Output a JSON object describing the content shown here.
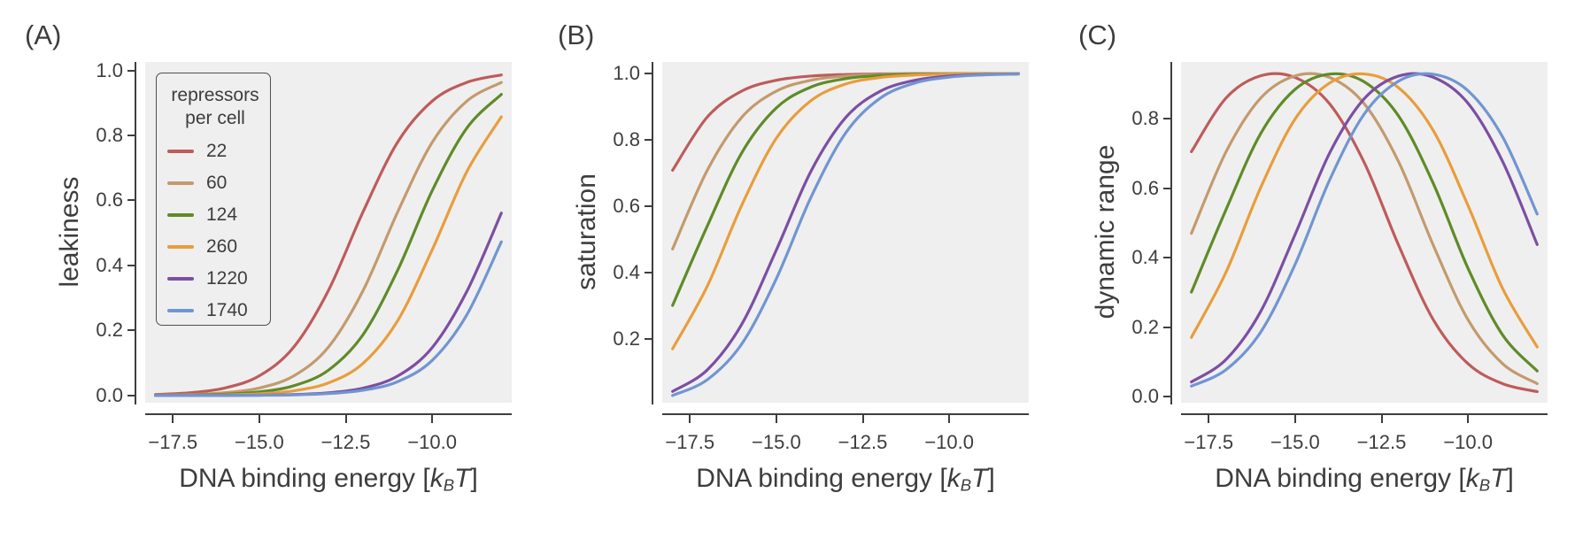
{
  "figure": {
    "background": "#ffffff",
    "plot_background": "#efefef",
    "text_color": "#3d3d3d",
    "axis_color": "#3e3e3e",
    "palette": {
      "22": "#bf5b5b",
      "60": "#c39a6e",
      "124": "#5f8b28",
      "260": "#e89d3c",
      "1220": "#7b4fa3",
      "1740": "#7195d2"
    },
    "xlabel": {
      "prefix": "DNA binding energy [",
      "k": "k",
      "sub": "B",
      "T": "T",
      "suffix": "]"
    },
    "legend": {
      "title_lines": [
        "repressors",
        "per cell"
      ],
      "entries": [
        {
          "label": "22"
        },
        {
          "label": "60"
        },
        {
          "label": "124"
        },
        {
          "label": "260"
        },
        {
          "label": "1220"
        },
        {
          "label": "1740"
        }
      ]
    }
  },
  "chart_data": [
    {
      "type": "line",
      "panel": "(A)",
      "title": "leakiness vs DNA binding energy",
      "ylabel": "leakiness",
      "xlabel": "DNA binding energy [kBT]",
      "legend_visible": true,
      "xlim": [
        -18.3,
        -7.7
      ],
      "ylim": [
        -0.022,
        1.026
      ],
      "grid": false,
      "xticks": {
        "values": [
          -17.5,
          -15.0,
          -12.5,
          -10.0
        ],
        "labels": [
          "−17.5",
          "−15.0",
          "−12.5",
          "−10.0"
        ]
      },
      "yticks": {
        "values": [
          0.0,
          0.2,
          0.4,
          0.6,
          0.8,
          1.0
        ],
        "labels": [
          "0.0",
          "0.2",
          "0.4",
          "0.6",
          "0.8",
          "1.0"
        ]
      },
      "x": [
        -18,
        -17,
        -16,
        -15,
        -14,
        -13,
        -12,
        -11,
        -10,
        -9,
        -8
      ],
      "series": [
        {
          "name": "22",
          "values": [
            0.0032,
            0.0087,
            0.0232,
            0.0607,
            0.1495,
            0.3234,
            0.565,
            0.7793,
            0.9056,
            0.9631,
            0.9861
          ]
        },
        {
          "name": "60",
          "values": [
            0.0012,
            0.0032,
            0.0087,
            0.0232,
            0.0606,
            0.1492,
            0.3226,
            0.5642,
            0.7787,
            0.9054,
            0.963
          ]
        },
        {
          "name": "124",
          "values": [
            0.0006,
            0.0016,
            0.0042,
            0.0113,
            0.0302,
            0.0781,
            0.1873,
            0.3851,
            0.63,
            0.8224,
            0.9264
          ]
        },
        {
          "name": "260",
          "values": [
            0.0003,
            0.0007,
            0.002,
            0.0054,
            0.0147,
            0.0389,
            0.099,
            0.23,
            0.4482,
            0.6883,
            0.8572
          ]
        },
        {
          "name": "1220",
          "values": [
            0.0001,
            0.0002,
            0.0004,
            0.0012,
            0.0032,
            0.0085,
            0.0229,
            0.0599,
            0.1475,
            0.32,
            0.5612
          ]
        },
        {
          "name": "1740",
          "values": [
            0.0,
            0.0001,
            0.0003,
            0.0008,
            0.0022,
            0.006,
            0.0162,
            0.0427,
            0.1082,
            0.2481,
            0.4728
          ]
        }
      ]
    },
    {
      "type": "line",
      "panel": "(B)",
      "title": "saturation vs DNA binding energy",
      "ylabel": "saturation",
      "xlabel": "DNA binding energy [kBT]",
      "legend_visible": false,
      "xlim": [
        -18.3,
        -7.7
      ],
      "ylim": [
        0.008,
        1.035
      ],
      "grid": false,
      "xticks": {
        "values": [
          -17.5,
          -15.0,
          -12.5,
          -10.0
        ],
        "labels": [
          "−17.5",
          "−15.0",
          "−12.5",
          "−10.0"
        ]
      },
      "yticks": {
        "values": [
          0.2,
          0.4,
          0.6,
          0.8,
          1.0
        ],
        "labels": [
          "0.2",
          "0.4",
          "0.6",
          "0.8",
          "1.0"
        ]
      },
      "x": [
        -18,
        -17,
        -16,
        -15,
        -14,
        -13,
        -12,
        -11,
        -10,
        -9,
        -8
      ],
      "series": [
        {
          "name": "22",
          "values": [
            0.7086,
            0.8686,
            0.9473,
            0.9799,
            0.9925,
            0.9972,
            0.999,
            0.9996,
            0.9999,
            0.9999,
            1.0
          ]
        },
        {
          "name": "60",
          "values": [
            0.4713,
            0.7078,
            0.8682,
            0.9471,
            0.9799,
            0.9925,
            0.9972,
            0.999,
            0.9996,
            0.9999,
            0.9999
          ]
        },
        {
          "name": "124",
          "values": [
            0.3013,
            0.5397,
            0.7612,
            0.8965,
            0.9593,
            0.9846,
            0.9943,
            0.9979,
            0.9992,
            0.9997,
            0.9999
          ]
        },
        {
          "name": "260",
          "values": [
            0.1706,
            0.3586,
            0.6032,
            0.8051,
            0.9182,
            0.9683,
            0.9881,
            0.9956,
            0.9984,
            0.9994,
            0.9998
          ]
        },
        {
          "name": "1220",
          "values": [
            0.042,
            0.1065,
            0.2446,
            0.4682,
            0.7053,
            0.8667,
            0.9465,
            0.9796,
            0.9924,
            0.9972,
            0.999
          ]
        },
        {
          "name": "1740",
          "values": [
            0.0298,
            0.0771,
            0.1851,
            0.3817,
            0.6266,
            0.8202,
            0.9254,
            0.9712,
            0.9892,
            0.996,
            0.9985
          ]
        }
      ]
    },
    {
      "type": "line",
      "panel": "(C)",
      "title": "dynamic range vs DNA binding energy",
      "ylabel": "dynamic range",
      "xlabel": "DNA binding energy [kBT]",
      "legend_visible": false,
      "xlim": [
        -18.3,
        -7.7
      ],
      "ylim": [
        -0.018,
        0.964
      ],
      "grid": false,
      "xticks": {
        "values": [
          -17.5,
          -15.0,
          -12.5,
          -10.0
        ],
        "labels": [
          "−17.5",
          "−15.0",
          "−12.5",
          "−10.0"
        ]
      },
      "yticks": {
        "values": [
          0.0,
          0.2,
          0.4,
          0.6,
          0.8
        ],
        "labels": [
          "0.0",
          "0.2",
          "0.4",
          "0.6",
          "0.8"
        ]
      },
      "x": [
        -18,
        -17,
        -16,
        -15,
        -14,
        -13,
        -12,
        -11,
        -10,
        -9,
        -8
      ],
      "series": [
        {
          "name": "22",
          "values": [
            0.7054,
            0.8599,
            0.9241,
            0.9192,
            0.843,
            0.6738,
            0.434,
            0.2203,
            0.0943,
            0.0368,
            0.0139
          ]
        },
        {
          "name": "60",
          "values": [
            0.4701,
            0.7046,
            0.8595,
            0.9239,
            0.9193,
            0.8433,
            0.6746,
            0.4348,
            0.2209,
            0.0945,
            0.0369
          ]
        },
        {
          "name": "124",
          "values": [
            0.3007,
            0.5381,
            0.757,
            0.8852,
            0.9291,
            0.9065,
            0.807,
            0.6128,
            0.3692,
            0.1773,
            0.0735
          ]
        },
        {
          "name": "260",
          "values": [
            0.1703,
            0.3579,
            0.6012,
            0.7997,
            0.9035,
            0.9294,
            0.8891,
            0.7656,
            0.5502,
            0.3111,
            0.1426
          ]
        },
        {
          "name": "1220",
          "values": [
            0.0419,
            0.1063,
            0.2442,
            0.467,
            0.7021,
            0.8582,
            0.9236,
            0.9197,
            0.8449,
            0.6772,
            0.4378
          ]
        },
        {
          "name": "1740",
          "values": [
            0.0298,
            0.077,
            0.1848,
            0.3809,
            0.6244,
            0.8142,
            0.9092,
            0.9285,
            0.881,
            0.7479,
            0.5257
          ]
        }
      ]
    }
  ]
}
